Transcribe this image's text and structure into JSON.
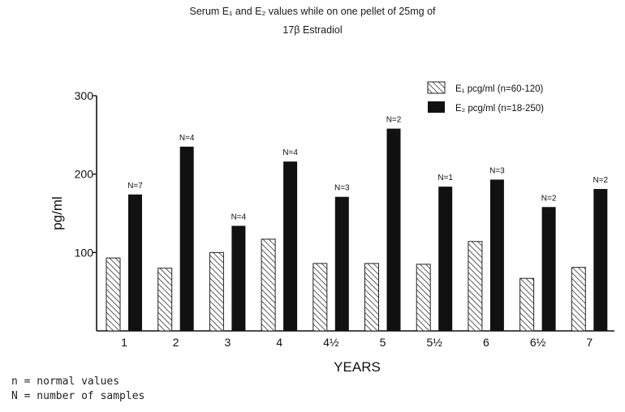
{
  "chart_data": {
    "type": "bar",
    "title_line1": "Serum E₁ and E₂ values while on one pellet of 25mg of",
    "title_line2": "17β Estradiol",
    "xlabel": "YEARS",
    "ylabel": "pg/ml",
    "ylim": [
      0,
      300
    ],
    "yticks": [
      100,
      200,
      300
    ],
    "grid": false,
    "legend_position": "top-right",
    "categories": [
      "1",
      "2",
      "3",
      "4",
      "4½",
      "5",
      "5½",
      "6",
      "6½",
      "7"
    ],
    "series": [
      {
        "name": "E₁ pcg/ml (n=60-120)",
        "pattern": "hatched",
        "values": [
          93,
          80,
          100,
          117,
          86,
          86,
          85,
          114,
          67,
          81
        ]
      },
      {
        "name": "E₂ pcg/ml (n=18-250)",
        "pattern": "solid",
        "color": "#111111",
        "values": [
          174,
          235,
          134,
          216,
          171,
          258,
          184,
          193,
          158,
          181
        ]
      }
    ],
    "annotations": [
      "N=7",
      "N=4",
      "N=4",
      "N=4",
      "N=3",
      "N=2",
      "N=1",
      "N=3",
      "N=2",
      "N=2"
    ]
  },
  "notes": {
    "line1": "n = normal values",
    "line2": "N = number of samples"
  }
}
